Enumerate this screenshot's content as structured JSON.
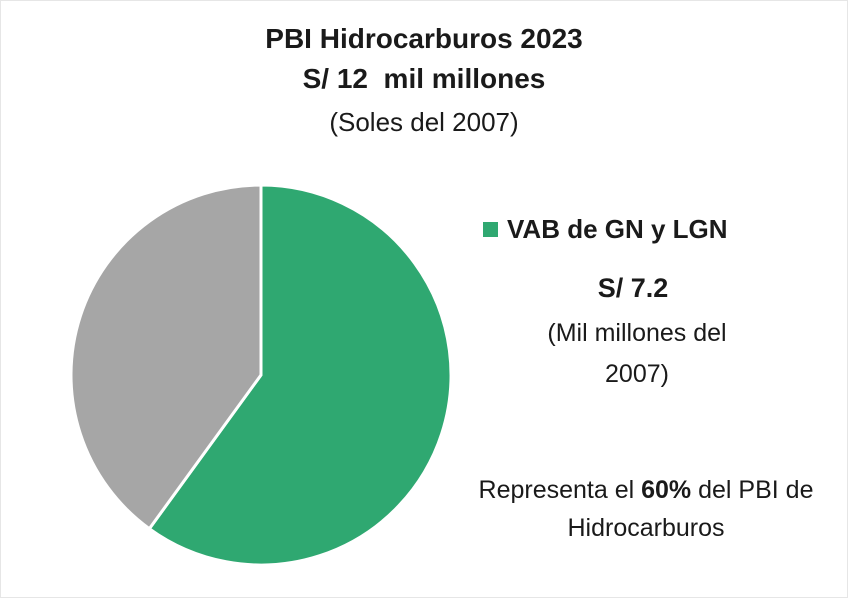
{
  "chart_data": {
    "type": "pie",
    "title": "PBI Hidrocarburos 2023",
    "subtitle": "S/ 12  mil millones",
    "subtitle_note": "(Soles del 2007)",
    "categories": [
      "VAB de GN y LGN",
      null
    ],
    "values": [
      60,
      40
    ],
    "colors": [
      "#2fa871",
      "#a6a6a6"
    ],
    "legend_value": "S/ 7.2",
    "legend_unit": "(Mil millones del 2007)",
    "annotation": {
      "before": "Representa el",
      "highlight": "60%",
      "after": "del PBI de Hidrocarburos"
    }
  }
}
